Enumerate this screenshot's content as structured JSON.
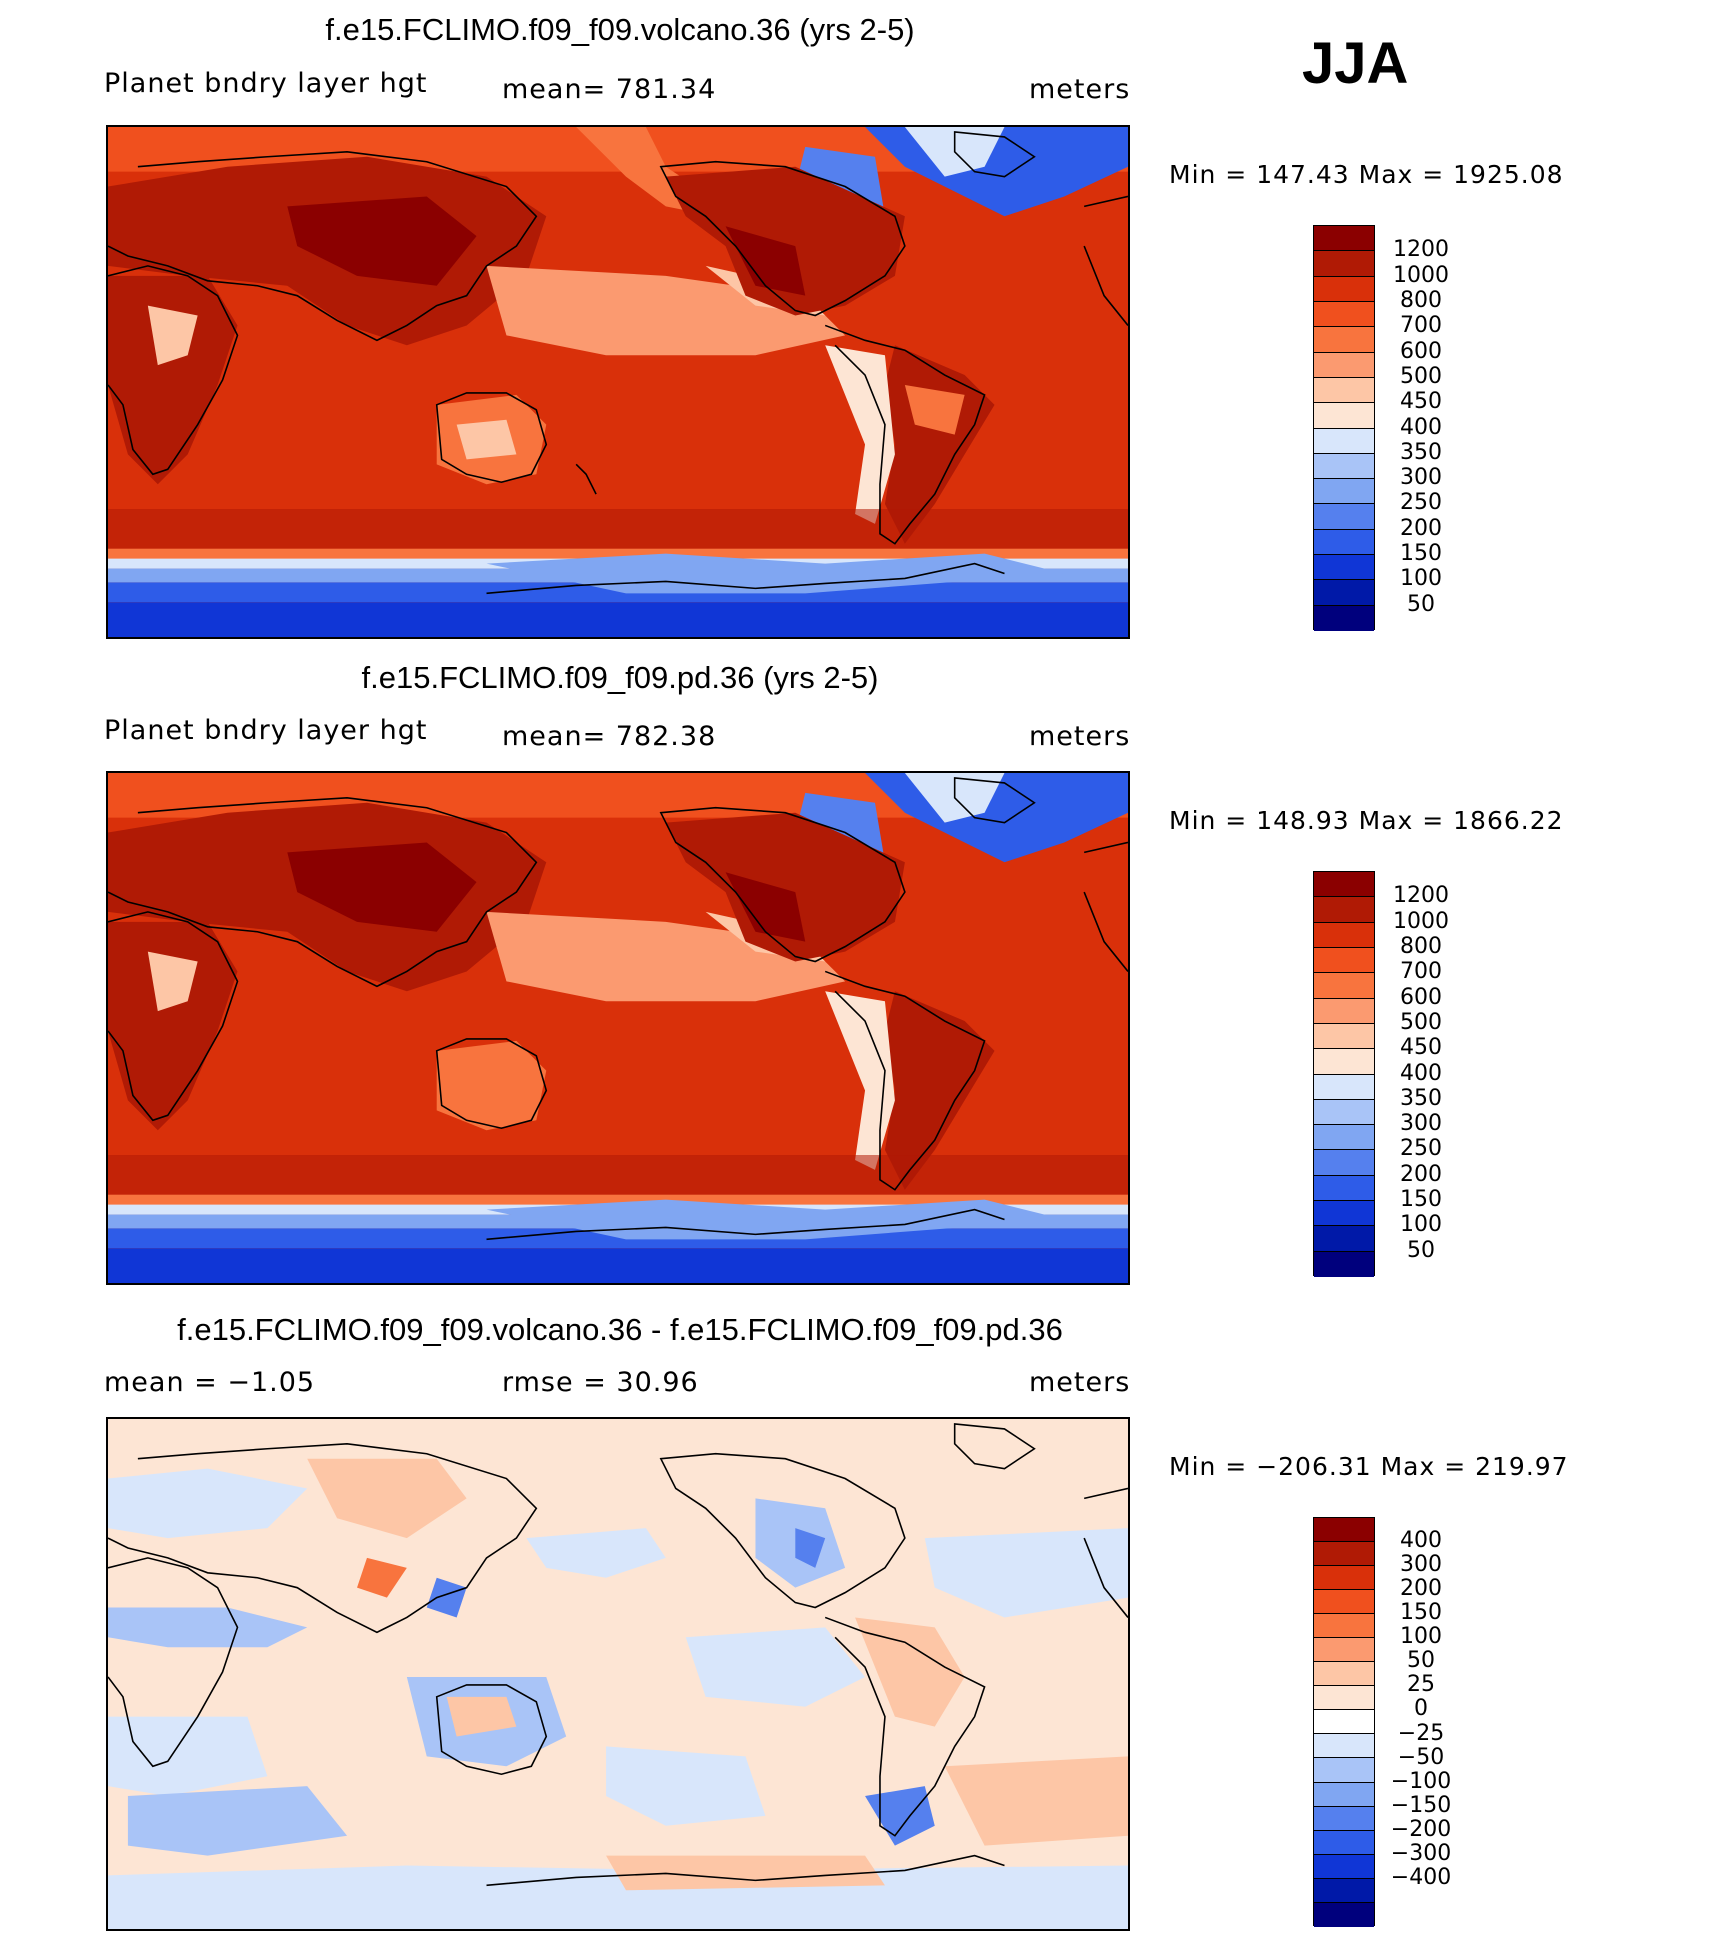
{
  "season": "JJA",
  "panels": [
    {
      "title": "f.e15.FCLIMO.f09_f09.volcano.36 (yrs 2-5)",
      "left_label": "Planet bndry layer hgt",
      "center_label": "mean= 781.34",
      "right_label": "meters",
      "stats": "Min = 147.43 Max = 1925.08",
      "colorbar_colors": [
        "#8b0000",
        "#b01a05",
        "#d9300a",
        "#f0501e",
        "#f8743e",
        "#fb9a70",
        "#fdc6a6",
        "#fde5d4",
        "#d8e6fb",
        "#a9c4f7",
        "#80a6f2",
        "#5580ee",
        "#2e5ce8",
        "#1036d6",
        "#0019a8",
        "#00007d"
      ],
      "colorbar_labels": [
        "1200",
        "1000",
        "800",
        "700",
        "600",
        "500",
        "450",
        "400",
        "350",
        "300",
        "250",
        "200",
        "150",
        "100",
        "50"
      ]
    },
    {
      "title": "f.e15.FCLIMO.f09_f09.pd.36 (yrs 2-5)",
      "left_label": "Planet bndry layer hgt",
      "center_label": "mean= 782.38",
      "right_label": "meters",
      "stats": "Min = 148.93 Max = 1866.22",
      "colorbar_colors": [
        "#8b0000",
        "#b01a05",
        "#d9300a",
        "#f0501e",
        "#f8743e",
        "#fb9a70",
        "#fdc6a6",
        "#fde5d4",
        "#d8e6fb",
        "#a9c4f7",
        "#80a6f2",
        "#5580ee",
        "#2e5ce8",
        "#1036d6",
        "#0019a8",
        "#00007d"
      ],
      "colorbar_labels": [
        "1200",
        "1000",
        "800",
        "700",
        "600",
        "500",
        "450",
        "400",
        "350",
        "300",
        "250",
        "200",
        "150",
        "100",
        "50"
      ]
    },
    {
      "title": "f.e15.FCLIMO.f09_f09.volcano.36 - f.e15.FCLIMO.f09_f09.pd.36",
      "left_label": "mean =   −1.05",
      "center_label": "rmse =   30.96",
      "right_label": "meters",
      "stats": "Min = −206.31 Max = 219.97",
      "colorbar_colors": [
        "#8b0000",
        "#b01a05",
        "#d9300a",
        "#f0501e",
        "#f8743e",
        "#fb9a70",
        "#fdc6a6",
        "#fde5d4",
        "#ffffff",
        "#d8e6fb",
        "#a9c4f7",
        "#80a6f2",
        "#5580ee",
        "#2e5ce8",
        "#1036d6",
        "#0019a8",
        "#00007d"
      ],
      "colorbar_labels": [
        "400",
        "300",
        "200",
        "150",
        "100",
        "50",
        "25",
        "0",
        "−25",
        "−50",
        "−100",
        "−150",
        "−200",
        "−300",
        "−400"
      ]
    }
  ]
}
